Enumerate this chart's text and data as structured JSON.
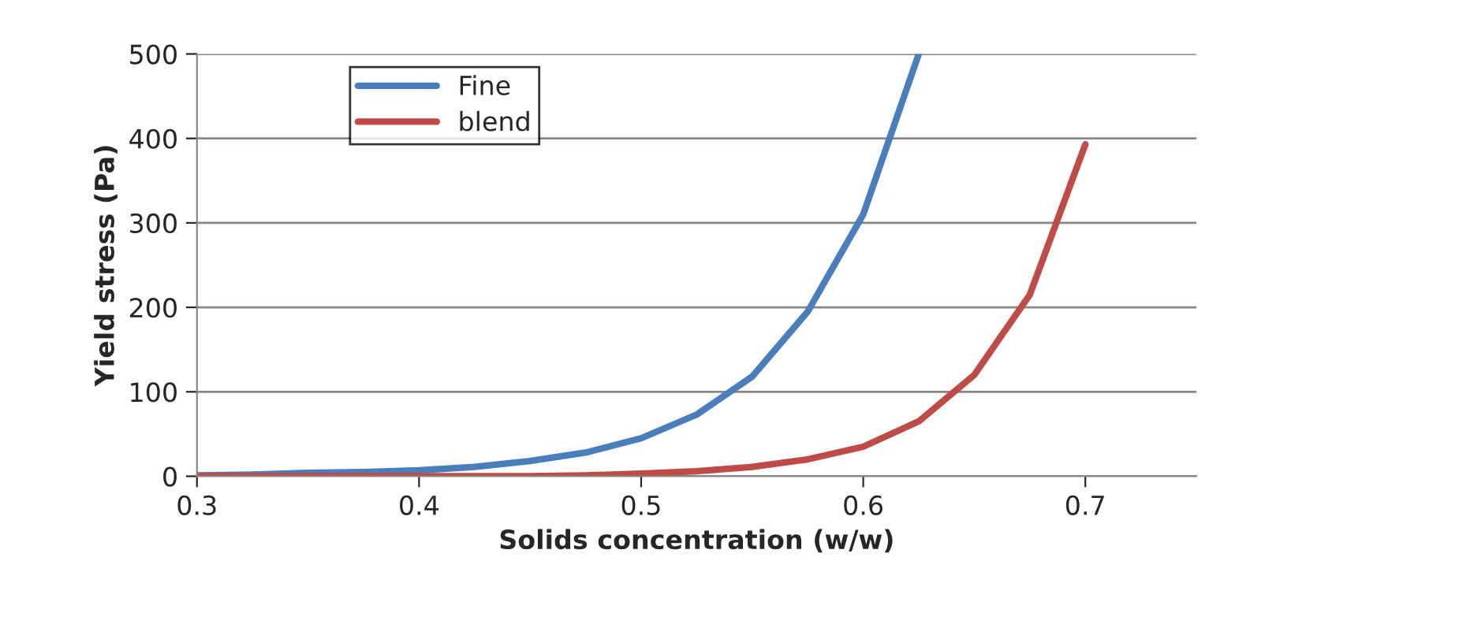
{
  "chart_data": {
    "type": "line",
    "xlabel": "Solids concentration (w/w)",
    "ylabel": "Yield stress (Pa)",
    "x": [
      0.3,
      0.325,
      0.35,
      0.375,
      0.4,
      0.425,
      0.45,
      0.475,
      0.5,
      0.525,
      0.55,
      0.575,
      0.6,
      0.625
    ],
    "series": [
      {
        "name": "Fine",
        "color": "#4a7ebb",
        "values": [
          1,
          2,
          4,
          5,
          7,
          11,
          18,
          28,
          45,
          73,
          118,
          195,
          310,
          500
        ]
      },
      {
        "name": "blend",
        "color": "#be4b48",
        "x": [
          0.3,
          0.325,
          0.35,
          0.375,
          0.4,
          0.425,
          0.45,
          0.475,
          0.5,
          0.525,
          0.55,
          0.575,
          0.6,
          0.625,
          0.65,
          0.675,
          0.7
        ],
        "values": [
          0,
          0,
          0,
          0,
          0,
          0,
          0,
          1,
          3,
          6,
          11,
          20,
          35,
          65,
          120,
          215,
          393
        ]
      }
    ],
    "xlim": [
      0.3,
      0.75
    ],
    "xticks": [
      0.3,
      0.4,
      0.5,
      0.6,
      0.7
    ],
    "ylim": [
      0,
      500
    ],
    "yticks": [
      0,
      100,
      200,
      300,
      400,
      500
    ],
    "grid": "y",
    "legend": "top left",
    "marker": "none",
    "line_style": "solid"
  }
}
